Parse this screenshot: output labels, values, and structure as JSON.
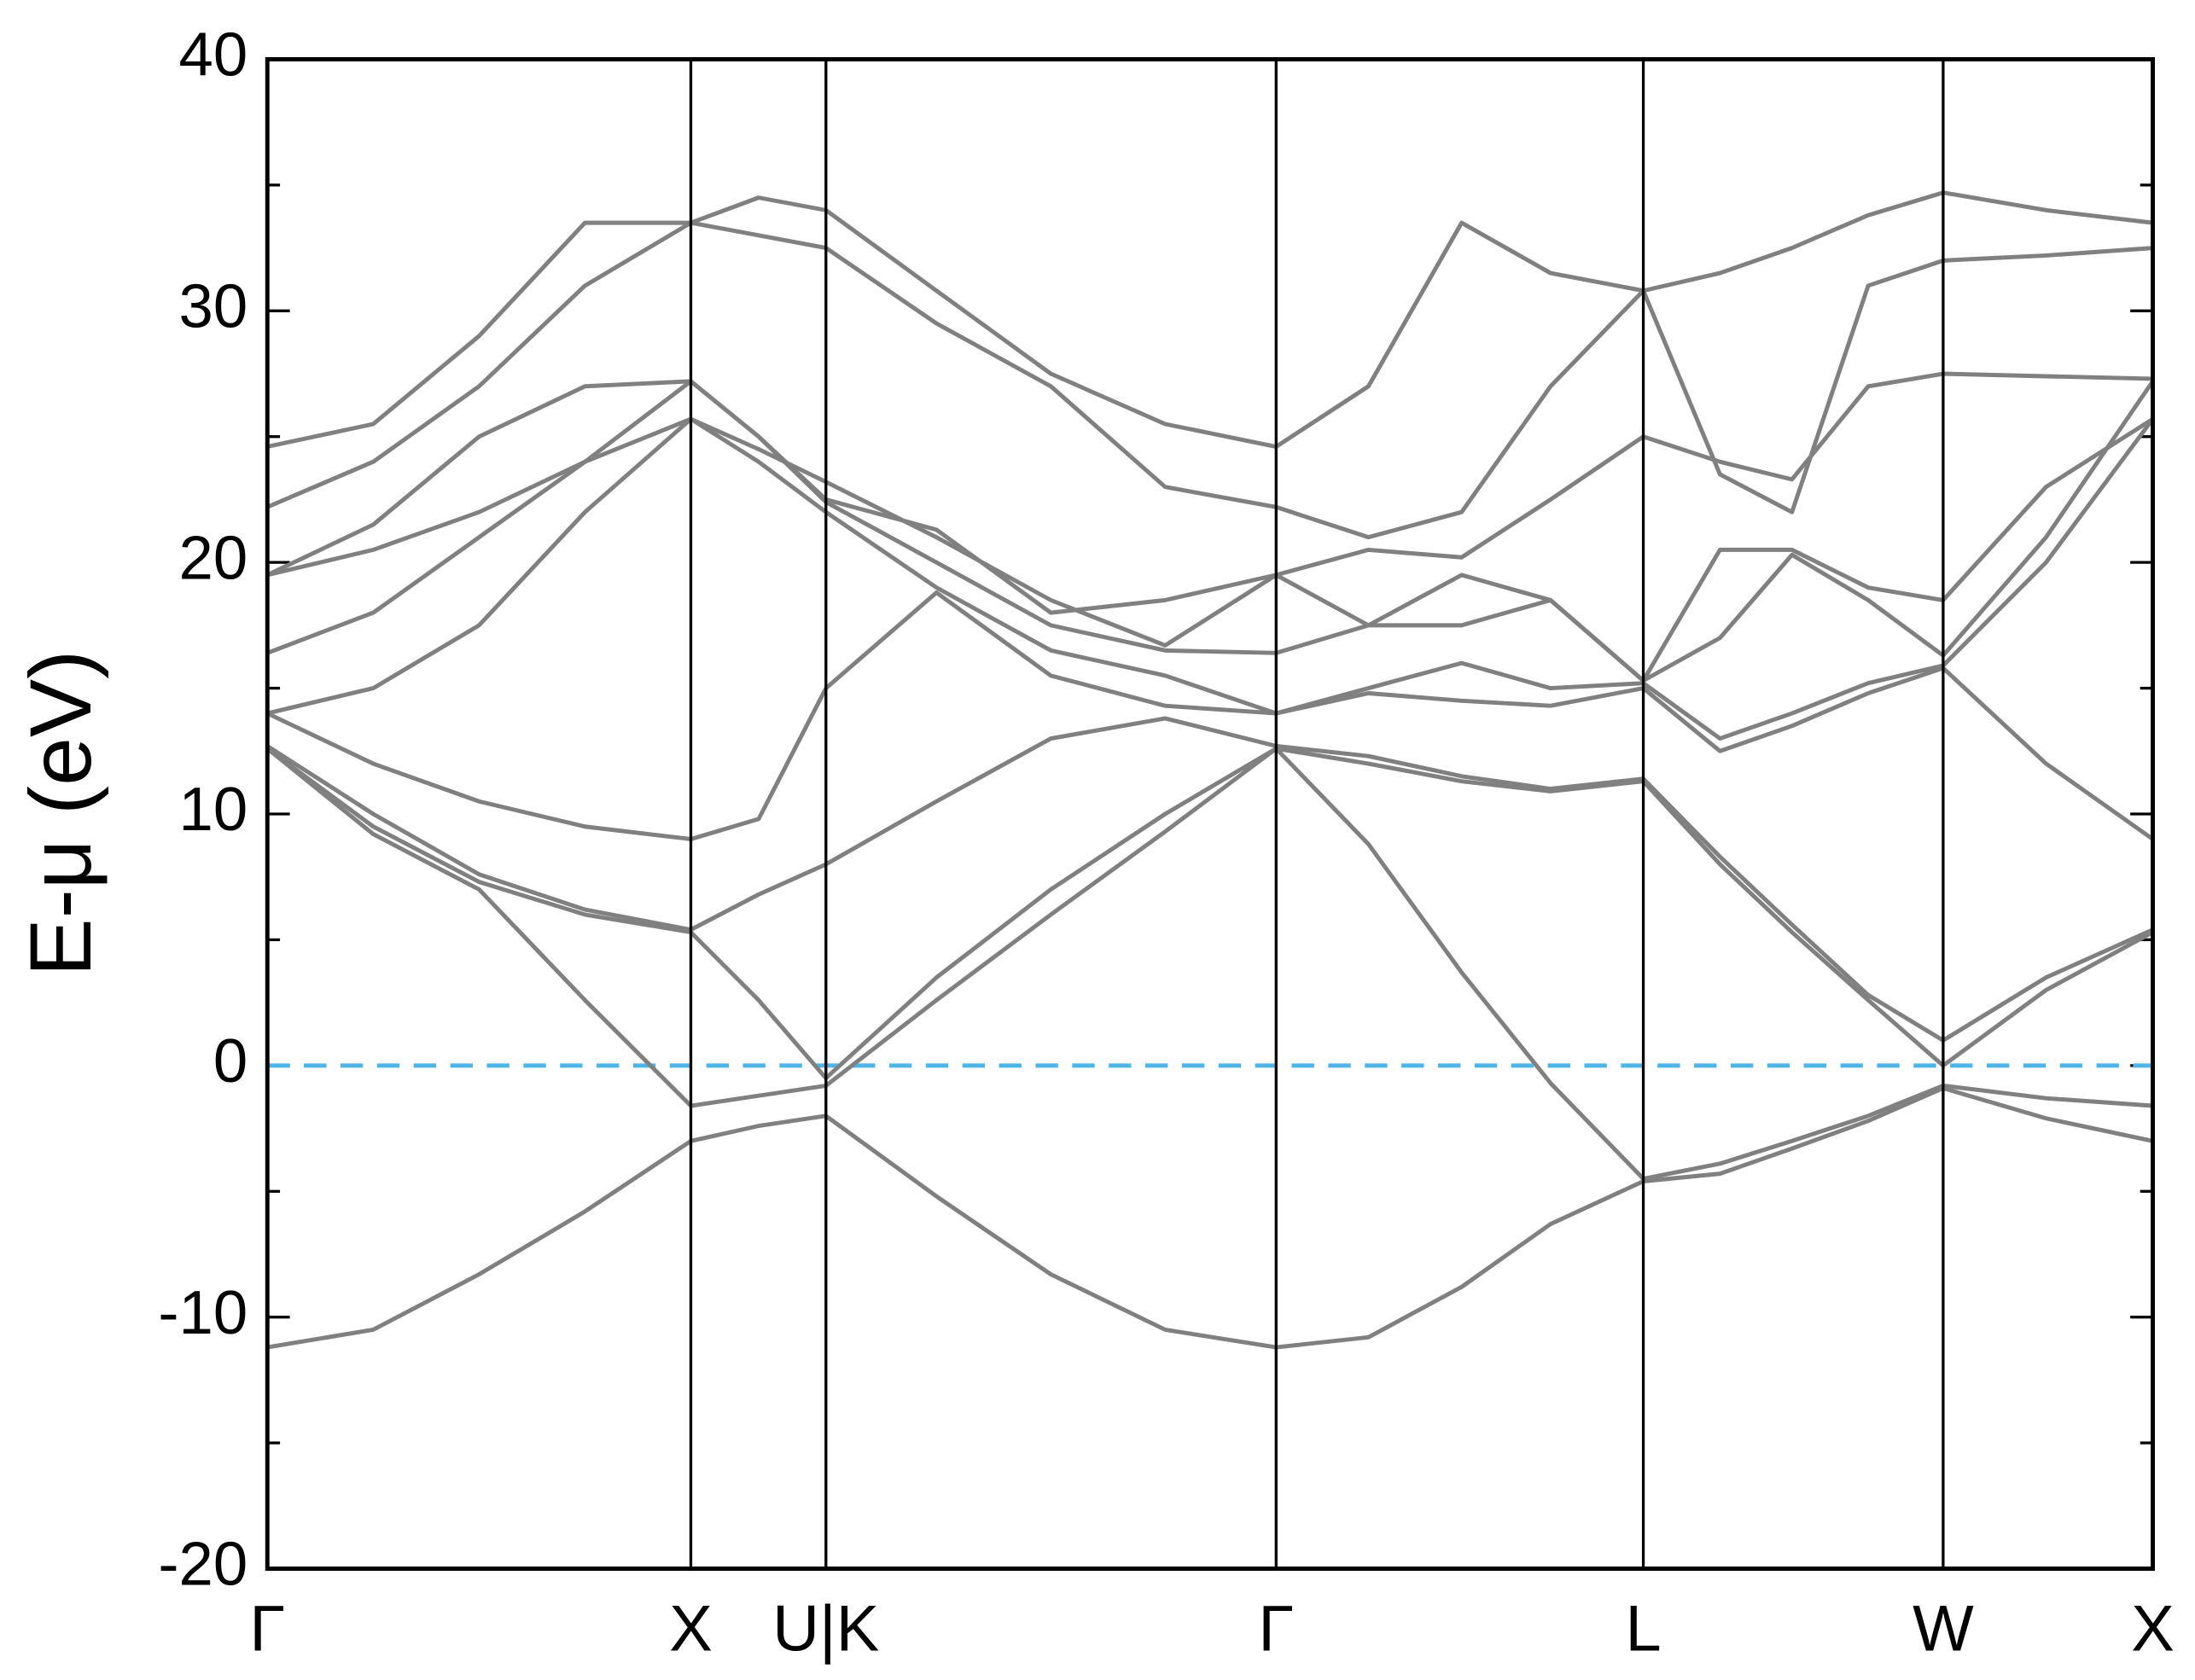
{
  "chart_data": {
    "type": "line",
    "y_label": "E-μ (eV)",
    "xlim": [
      0,
      4.452
    ],
    "ylim": [
      -20,
      40
    ],
    "xticks": [
      {
        "value": 0,
        "label": "Γ"
      },
      {
        "value": 1.0,
        "label": "X"
      },
      {
        "value": 1.319,
        "label": "U|K"
      },
      {
        "value": 2.382,
        "label": "Γ"
      },
      {
        "value": 3.249,
        "label": "L"
      },
      {
        "value": 3.957,
        "label": "W"
      },
      {
        "value": 4.452,
        "label": "X"
      }
    ],
    "yticks": [
      -20,
      -10,
      0,
      10,
      20,
      30,
      40
    ],
    "yminor_ticks": [
      -15,
      -5,
      5,
      15,
      25,
      35
    ],
    "fermi_level": 0,
    "fermi_color": "#4fb5e6",
    "x": [
      0,
      0.25,
      0.5,
      0.75,
      1.0,
      1.16,
      1.319,
      1.58,
      1.85,
      2.12,
      2.382,
      2.6,
      2.82,
      3.03,
      3.249,
      3.43,
      3.6,
      3.78,
      3.957,
      4.2,
      4.452
    ],
    "series": [
      {
        "color": "#808080",
        "values": [
          -11.2,
          -10.5,
          -8.3,
          -5.8,
          -3.0,
          -2.4,
          -2.0,
          -5.2,
          -8.3,
          -10.5,
          -11.2,
          -10.8,
          -8.8,
          -6.3,
          -4.6,
          -4.3,
          -3.3,
          -2.2,
          -0.9,
          -2.1,
          -3.0
        ]
      },
      {
        "color": "#808080",
        "values": [
          12.6,
          9.2,
          7.0,
          2.6,
          -1.6,
          -1.2,
          -0.8,
          2.6,
          6.0,
          9.3,
          12.6,
          8.8,
          3.7,
          -0.7,
          -4.5,
          -3.9,
          -3.0,
          -2.0,
          -0.8,
          -1.3,
          -1.6
        ]
      },
      {
        "color": "#808080",
        "values": [
          12.6,
          9.5,
          7.3,
          6.0,
          5.3,
          2.6,
          -0.5,
          3.5,
          7.0,
          10.0,
          12.6,
          12.0,
          11.3,
          10.9,
          11.3,
          8.0,
          5.3,
          2.6,
          0.0,
          3.0,
          5.3
        ]
      },
      {
        "color": "#808080",
        "values": [
          12.7,
          10.0,
          7.6,
          6.2,
          5.4,
          6.8,
          8.0,
          10.5,
          13.0,
          13.8,
          12.7,
          12.3,
          11.5,
          11.0,
          11.4,
          8.3,
          5.6,
          2.8,
          1.0,
          3.5,
          5.4
        ]
      },
      {
        "color": "#808080",
        "values": [
          14.0,
          12.0,
          10.5,
          9.5,
          9.0,
          9.8,
          15.0,
          18.8,
          15.5,
          14.3,
          14.0,
          14.8,
          14.5,
          14.3,
          15.0,
          12.5,
          13.5,
          14.8,
          15.8,
          12.0,
          9.0
        ]
      },
      {
        "color": "#808080",
        "values": [
          14.0,
          15.0,
          17.5,
          22.0,
          25.7,
          24.0,
          22.0,
          19.0,
          16.5,
          15.5,
          14.0,
          15.0,
          16.0,
          15.0,
          15.2,
          13.0,
          14.0,
          15.2,
          15.9,
          20.0,
          25.7
        ]
      },
      {
        "color": "#808080",
        "values": [
          16.4,
          18.0,
          21.0,
          24.0,
          27.2,
          25.0,
          22.4,
          20.0,
          17.5,
          16.5,
          16.4,
          17.5,
          17.5,
          18.5,
          15.3,
          17.0,
          20.3,
          18.5,
          16.3,
          21.0,
          27.2
        ]
      },
      {
        "color": "#808080",
        "values": [
          19.5,
          20.5,
          22.0,
          24.0,
          25.7,
          24.5,
          23.2,
          21.0,
          18.5,
          16.7,
          19.5,
          17.5,
          19.5,
          18.5,
          15.3,
          20.5,
          20.5,
          19.0,
          18.5,
          23.0,
          25.7
        ]
      },
      {
        "color": "#808080",
        "values": [
          19.5,
          21.5,
          25.0,
          27.0,
          27.2,
          25.0,
          22.5,
          21.3,
          18.0,
          18.5,
          19.5,
          20.5,
          20.2,
          22.5,
          25.0,
          24.0,
          23.3,
          27.0,
          27.5,
          27.4,
          27.3
        ]
      },
      {
        "color": "#808080",
        "values": [
          22.2,
          24.0,
          27.0,
          31.0,
          33.5,
          33.0,
          32.5,
          29.5,
          27.0,
          23.0,
          22.2,
          21.0,
          22.0,
          27.0,
          30.8,
          23.5,
          22.0,
          31.0,
          32.0,
          32.2,
          32.5
        ]
      },
      {
        "color": "#808080",
        "values": [
          24.6,
          25.5,
          29.0,
          33.5,
          33.5,
          34.5,
          34.0,
          30.8,
          27.5,
          25.5,
          24.6,
          27.0,
          33.5,
          31.5,
          30.8,
          31.5,
          32.5,
          33.8,
          34.7,
          34.0,
          33.5
        ]
      }
    ]
  }
}
